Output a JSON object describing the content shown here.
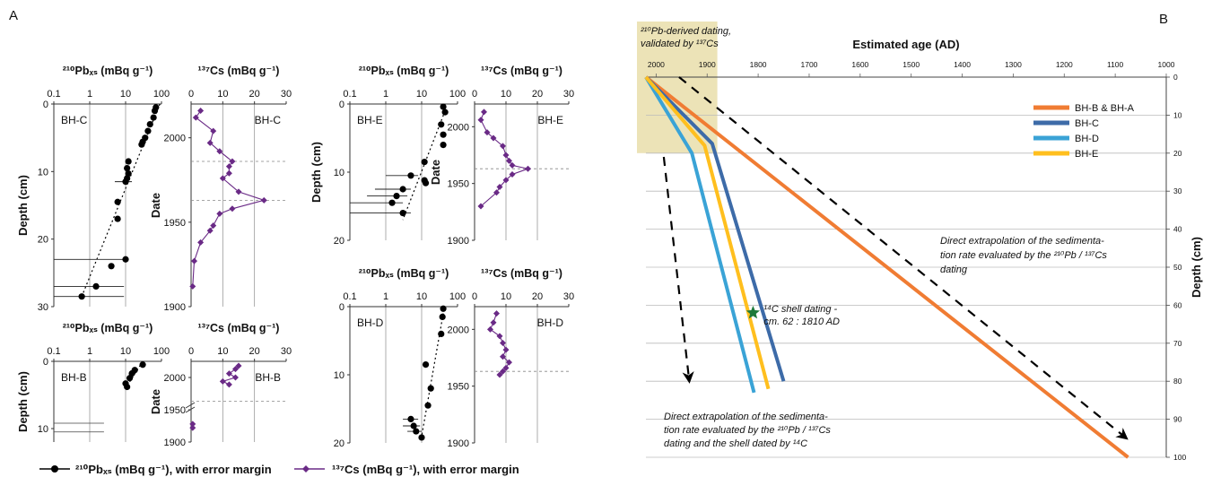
{
  "panels": {
    "a_label": "A",
    "b_label": "B"
  },
  "legend": {
    "pb_entry": "²¹⁰Pbₓₛ (mBq g⁻¹), with error margin",
    "cs_entry": "¹³⁷Cs (mBq g⁻¹), with error margin"
  },
  "colors": {
    "pb_marker": "#000000",
    "cs_marker": "#6a2a86",
    "bhba": "#f07c33",
    "bhc": "#3d6ba8",
    "bhd": "#3aa3d6",
    "bhe": "#ffbf1e",
    "shell_star": "#1e7a3a",
    "dating_zone": "#e9deaa"
  },
  "chart_data": [
    {
      "id": "pb_bhc",
      "type": "scatter",
      "panel": "A",
      "core": "BH-C",
      "title": "²¹⁰Pbₓₛ (mBq g⁻¹)",
      "xscale": "log",
      "xlim": [
        0.1,
        100
      ],
      "xticks": [
        "0.1",
        "1",
        "10",
        "100"
      ],
      "ylabel": "Depth (cm)",
      "ylim": [
        30,
        0
      ],
      "yticks": [
        "0",
        "10",
        "20",
        "30"
      ],
      "grid": "vertical",
      "points": [
        {
          "x": 70,
          "y": 0.5
        },
        {
          "x": 65,
          "y": 1.0
        },
        {
          "x": 60,
          "y": 2.0
        },
        {
          "x": 48,
          "y": 3.0
        },
        {
          "x": 42,
          "y": 4.0
        },
        {
          "x": 35,
          "y": 5.0
        },
        {
          "x": 30,
          "y": 5.6
        },
        {
          "x": 28,
          "y": 6.0
        },
        {
          "x": 12,
          "y": 8.5
        },
        {
          "x": 11,
          "y": 9.5
        },
        {
          "x": 12,
          "y": 10.3
        },
        {
          "x": 11,
          "y": 11.0
        },
        {
          "x": 10,
          "y": 11.5,
          "xerr": [
            5,
            15
          ]
        },
        {
          "x": 6,
          "y": 14.5
        },
        {
          "x": 6,
          "y": 17.0
        },
        {
          "x": 10,
          "y": 23.0,
          "xerr": [
            0,
            10
          ]
        },
        {
          "x": 4,
          "y": 24.0
        },
        {
          "x": 1.5,
          "y": 27.0,
          "xerr": [
            0.1,
            9
          ]
        },
        {
          "x": 0.6,
          "y": 28.5,
          "xerr": [
            0.1,
            9
          ]
        }
      ],
      "trend": [
        {
          "x": 90,
          "y": 0
        },
        {
          "x": 0.6,
          "y": 28.5
        }
      ]
    },
    {
      "id": "cs_bhc",
      "type": "line",
      "panel": "A",
      "core": "BH-C",
      "title": "¹³⁷Cs (mBq g⁻¹)",
      "xlim": [
        0,
        30
      ],
      "xticks": [
        "0",
        "10",
        "20",
        "30"
      ],
      "ylabel": "Date",
      "ylim": [
        1900,
        2020
      ],
      "yticks": [
        "1900",
        "1950",
        "2000"
      ],
      "grid": "vertical",
      "refs": [
        1986,
        1963
      ],
      "points": [
        {
          "x": 3,
          "y": 2016
        },
        {
          "x": 1.5,
          "y": 2012
        },
        {
          "x": 7,
          "y": 2004
        },
        {
          "x": 6,
          "y": 1997
        },
        {
          "x": 9,
          "y": 1992
        },
        {
          "x": 13,
          "y": 1986
        },
        {
          "x": 12,
          "y": 1983
        },
        {
          "x": 12,
          "y": 1979
        },
        {
          "x": 10,
          "y": 1976
        },
        {
          "x": 15,
          "y": 1968
        },
        {
          "x": 23,
          "y": 1963
        },
        {
          "x": 13,
          "y": 1958
        },
        {
          "x": 9,
          "y": 1955
        },
        {
          "x": 7,
          "y": 1948
        },
        {
          "x": 6,
          "y": 1945
        },
        {
          "x": 3,
          "y": 1938
        },
        {
          "x": 1,
          "y": 1927
        },
        {
          "x": 0.5,
          "y": 1912
        }
      ]
    },
    {
      "id": "pb_bhe",
      "type": "scatter",
      "panel": "A",
      "core": "BH-E",
      "title": "²¹⁰Pbₓₛ (mBq g⁻¹)",
      "xscale": "log",
      "xlim": [
        0.1,
        100
      ],
      "xticks": [
        "0.1",
        "1",
        "10",
        "100"
      ],
      "ylabel": "Depth (cm)",
      "ylim": [
        20,
        0
      ],
      "yticks": [
        "0",
        "10",
        "20"
      ],
      "grid": "vertical",
      "points": [
        {
          "x": 40,
          "y": 0.4
        },
        {
          "x": 45,
          "y": 1.2
        },
        {
          "x": 35,
          "y": 3.0
        },
        {
          "x": 40,
          "y": 4.5
        },
        {
          "x": 40,
          "y": 6.0
        },
        {
          "x": 12,
          "y": 8.5
        },
        {
          "x": 5,
          "y": 10.5,
          "xerr": [
            1,
            8
          ]
        },
        {
          "x": 12,
          "y": 11.2
        },
        {
          "x": 13,
          "y": 11.6
        },
        {
          "x": 3,
          "y": 12.5,
          "xerr": [
            0.5,
            5
          ]
        },
        {
          "x": 2,
          "y": 13.5,
          "xerr": [
            0.3,
            4
          ]
        },
        {
          "x": 1.5,
          "y": 14.5,
          "xerr": [
            0.1,
            3
          ]
        },
        {
          "x": 3,
          "y": 16.0,
          "xerr": [
            0.1,
            5
          ]
        }
      ],
      "trend": [
        {
          "x": 45,
          "y": 1
        },
        {
          "x": 3,
          "y": 17
        }
      ]
    },
    {
      "id": "cs_bhe",
      "type": "line",
      "panel": "A",
      "core": "BH-E",
      "title": "¹³⁷Cs (mBq g⁻¹)",
      "xlim": [
        0,
        30
      ],
      "xticks": [
        "0",
        "10",
        "20",
        "30"
      ],
      "ylabel": "Date",
      "ylim": [
        1900,
        2020
      ],
      "yticks": [
        "1900",
        "1950",
        "2000"
      ],
      "grid": "vertical",
      "refs": [
        1963
      ],
      "points": [
        {
          "x": 3,
          "y": 2013
        },
        {
          "x": 2,
          "y": 2006
        },
        {
          "x": 4,
          "y": 1995
        },
        {
          "x": 6,
          "y": 1990
        },
        {
          "x": 9,
          "y": 1983
        },
        {
          "x": 10,
          "y": 1975
        },
        {
          "x": 11,
          "y": 1970
        },
        {
          "x": 12,
          "y": 1966
        },
        {
          "x": 17,
          "y": 1963
        },
        {
          "x": 12,
          "y": 1958
        },
        {
          "x": 10,
          "y": 1953
        },
        {
          "x": 8,
          "y": 1947
        },
        {
          "x": 7,
          "y": 1942
        },
        {
          "x": 2,
          "y": 1930
        }
      ]
    },
    {
      "id": "pb_bhb",
      "type": "scatter",
      "panel": "A",
      "core": "BH-B",
      "title": "²¹⁰Pbₓₛ (mBq g⁻¹)",
      "xscale": "log",
      "xlim": [
        0.1,
        100
      ],
      "xticks": [
        "0.1",
        "1",
        "10",
        "100"
      ],
      "ylabel": "Depth (cm)",
      "ylim": [
        12,
        0
      ],
      "yticks": [
        "0",
        "10"
      ],
      "grid": "vertical",
      "points": [
        {
          "x": 30,
          "y": 0.5
        },
        {
          "x": 18,
          "y": 1.3
        },
        {
          "x": 15,
          "y": 1.8
        },
        {
          "x": 13,
          "y": 2.5
        },
        {
          "x": 10,
          "y": 3.3
        },
        {
          "x": 11,
          "y": 3.8
        }
      ],
      "trend": [
        {
          "x": 30,
          "y": 0
        },
        {
          "x": 10,
          "y": 4
        }
      ],
      "error_bars_only": [
        {
          "y": 9.2,
          "xerr": [
            0.1,
            2.5
          ]
        },
        {
          "y": 10.5,
          "xerr": [
            0.1,
            2.5
          ]
        }
      ]
    },
    {
      "id": "cs_bhb",
      "type": "line",
      "panel": "A",
      "core": "BH-B",
      "title": "¹³⁷Cs (mBq g⁻¹)",
      "xlim": [
        0,
        30
      ],
      "xticks": [
        "0",
        "10",
        "20",
        "30"
      ],
      "ylabel": "Date",
      "ylim": [
        1900,
        2025
      ],
      "yticks": [
        "1900",
        "1950",
        "2000"
      ],
      "grid": "vertical",
      "refs": [
        1963
      ],
      "points": [
        {
          "x": 15,
          "y": 2018
        },
        {
          "x": 14,
          "y": 2013
        },
        {
          "x": 12,
          "y": 2006
        },
        {
          "x": 14,
          "y": 2000
        },
        {
          "x": 10,
          "y": 1994
        },
        {
          "x": 12,
          "y": 1989
        }
      ],
      "points_lower": [
        {
          "x": 0.5,
          "y": 1928
        },
        {
          "x": 0.5,
          "y": 1922
        }
      ]
    },
    {
      "id": "pb_bhd",
      "type": "scatter",
      "panel": "A",
      "core": "BH-D",
      "title": "²¹⁰Pbₓₛ (mBq g⁻¹)",
      "xscale": "log",
      "xlim": [
        0.1,
        100
      ],
      "xticks": [
        "0.1",
        "1",
        "10",
        "100"
      ],
      "ylabel": "",
      "ylim": [
        20,
        0
      ],
      "yticks": [
        "0",
        "10",
        "20"
      ],
      "grid": "vertical",
      "points": [
        {
          "x": 40,
          "y": 0.3
        },
        {
          "x": 38,
          "y": 1.5
        },
        {
          "x": 35,
          "y": 4.0
        },
        {
          "x": 13,
          "y": 8.5
        },
        {
          "x": 18,
          "y": 12.0
        },
        {
          "x": 15,
          "y": 14.5
        },
        {
          "x": 5,
          "y": 16.5,
          "xerr": [
            3,
            8
          ]
        },
        {
          "x": 6,
          "y": 17.5,
          "xerr": [
            3,
            9
          ]
        },
        {
          "x": 7,
          "y": 18.3,
          "xerr": [
            4,
            10
          ]
        },
        {
          "x": 10,
          "y": 19.2
        }
      ],
      "trend": [
        {
          "x": 40,
          "y": 1
        },
        {
          "x": 10,
          "y": 19
        }
      ]
    },
    {
      "id": "cs_bhd",
      "type": "line",
      "panel": "A",
      "core": "BH-D",
      "title": "¹³⁷Cs (mBq g⁻¹)",
      "xlim": [
        0,
        30
      ],
      "xticks": [
        "0",
        "10",
        "20",
        "30"
      ],
      "ylabel": "",
      "ylim": [
        1900,
        2020
      ],
      "yticks": [
        "1900",
        "1950",
        "2000"
      ],
      "grid": "vertical",
      "refs": [
        1963
      ],
      "points": [
        {
          "x": 7,
          "y": 2014
        },
        {
          "x": 6,
          "y": 2006
        },
        {
          "x": 5,
          "y": 2000
        },
        {
          "x": 8,
          "y": 1994
        },
        {
          "x": 9,
          "y": 1988
        },
        {
          "x": 10,
          "y": 1982
        },
        {
          "x": 9,
          "y": 1976
        },
        {
          "x": 11,
          "y": 1971
        },
        {
          "x": 10,
          "y": 1966
        },
        {
          "x": 9,
          "y": 1963
        },
        {
          "x": 8,
          "y": 1960
        }
      ]
    },
    {
      "id": "age_depth",
      "type": "line",
      "panel": "B",
      "title": "Estimated age (AD)",
      "ylabel": "Depth (cm)",
      "xlim": [
        2020,
        1000
      ],
      "xticks": [
        "2000",
        "1900",
        "1800",
        "1700",
        "1600",
        "1500",
        "1400",
        "1300",
        "1200",
        "1100",
        "1000"
      ],
      "ylim": [
        0,
        100
      ],
      "yticks": [
        "0",
        "10",
        "20",
        "30",
        "40",
        "50",
        "60",
        "70",
        "80",
        "90",
        "100"
      ],
      "grid": "horizontal",
      "legend_position": "top-right",
      "series": [
        {
          "name": "BH-B & BH-A",
          "key": "bhba",
          "points": [
            {
              "x": 2020,
              "y": 0
            },
            {
              "x": 1075,
              "y": 100
            }
          ]
        },
        {
          "name": "BH-C",
          "key": "bhc",
          "points": [
            {
              "x": 2020,
              "y": 0
            },
            {
              "x": 1890,
              "y": 17.5
            },
            {
              "x": 1750,
              "y": 80
            }
          ]
        },
        {
          "name": "BH-D",
          "key": "bhd",
          "points": [
            {
              "x": 2020,
              "y": 0
            },
            {
              "x": 1930,
              "y": 20
            },
            {
              "x": 1808,
              "y": 83
            }
          ]
        },
        {
          "name": "BH-E",
          "key": "bhe",
          "points": [
            {
              "x": 2020,
              "y": 0
            },
            {
              "x": 1905,
              "y": 18
            },
            {
              "x": 1780,
              "y": 82
            }
          ]
        }
      ],
      "shell": {
        "x": 1810,
        "y": 62,
        "label_line1": "¹⁴C shell dating -",
        "label_line2": "cm. 62 : 1810 AD"
      },
      "dating_zone": {
        "x_from": 2020,
        "x_to": 1880,
        "y_from": 0,
        "y_to": 20,
        "label_line1": "²¹⁰Pb-derived dating,",
        "label_line2": "validated by ¹³⁷Cs"
      },
      "arrows": [
        {
          "from": {
            "x": 1955,
            "y": 0
          },
          "to": {
            "x": 1078,
            "y": 95
          },
          "text_lines": [
            "Direct extrapolation of the sedimenta-",
            "tion rate evaluated by the ²¹⁰Pb / ¹³⁷Cs",
            "dating"
          ]
        },
        {
          "from": {
            "x": 1985,
            "y": 21
          },
          "to": {
            "x": 1935,
            "y": 80
          },
          "text_lines": [
            "Direct extrapolation of the sedimenta-",
            "tion rate evaluated by the ²¹⁰Pb / ¹³⁷Cs",
            "dating and the shell dated by ¹⁴C"
          ]
        }
      ]
    }
  ]
}
